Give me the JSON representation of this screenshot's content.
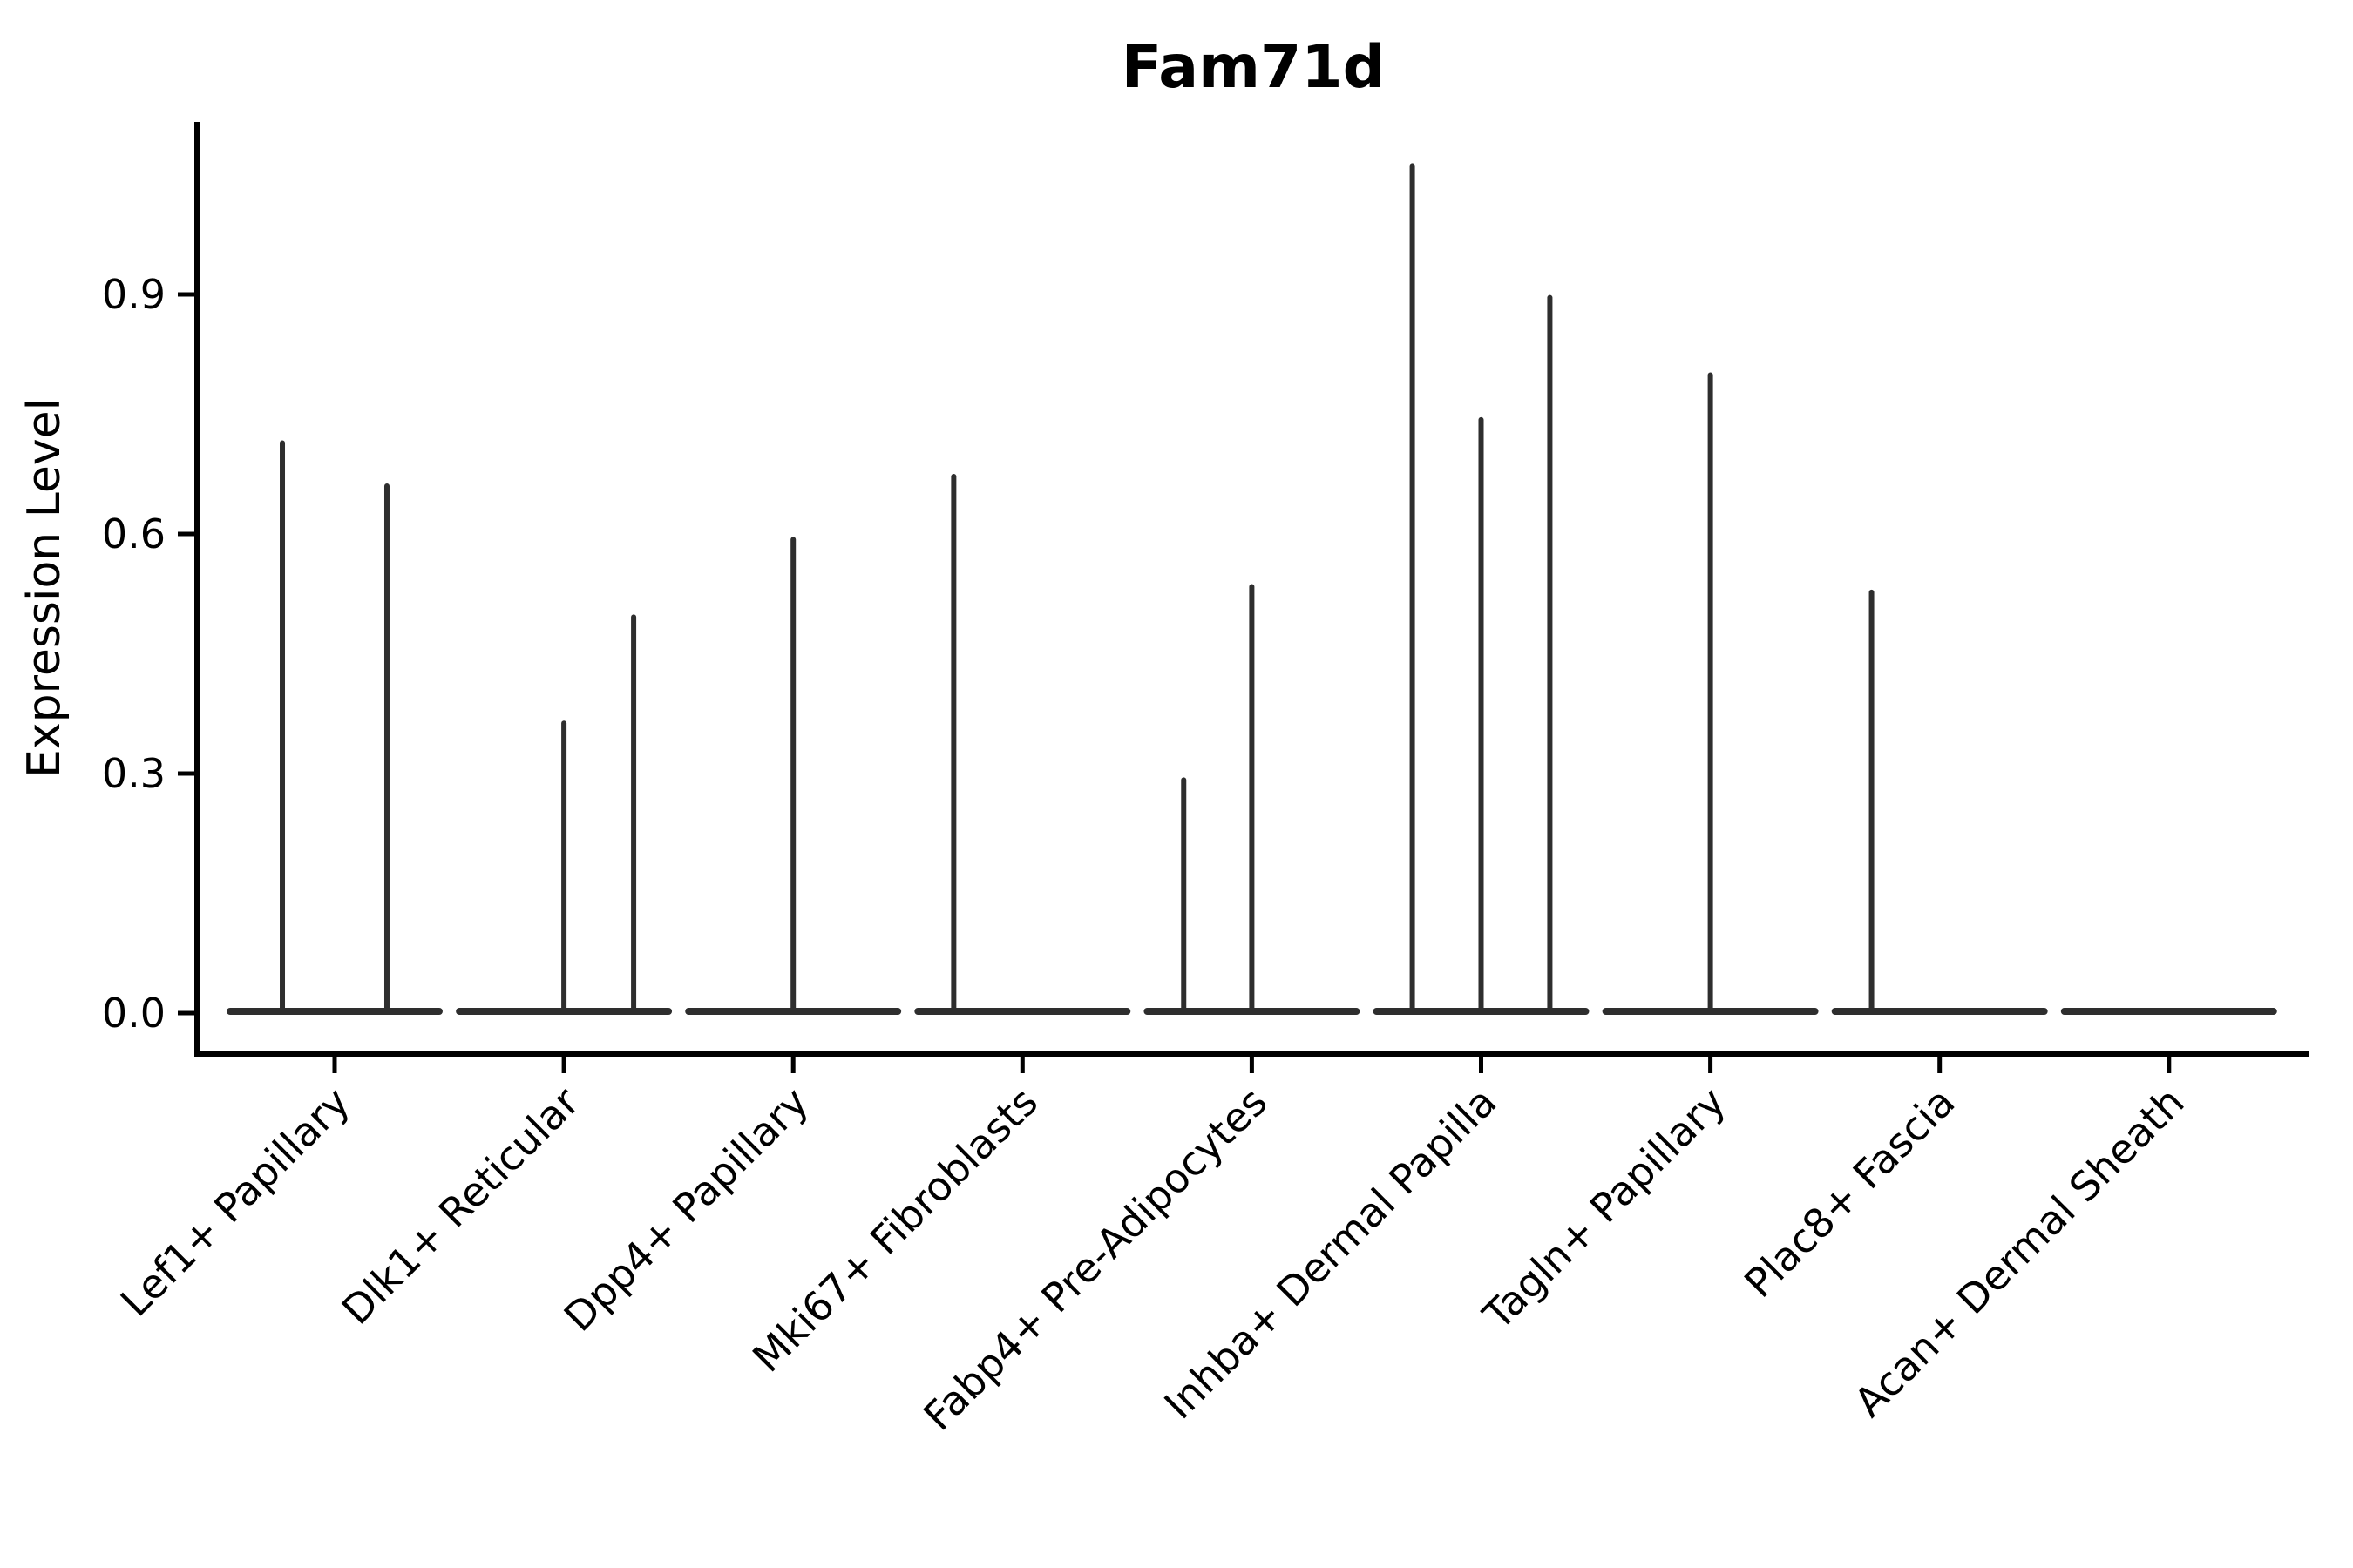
{
  "chart_data": {
    "type": "violin",
    "title": "Fam71d",
    "ylabel": "Expression Level",
    "xlabel": "",
    "yticks": [
      "0.0",
      "0.3",
      "0.6",
      "0.9"
    ],
    "ylim": [
      -0.051,
      1.116
    ],
    "grid": false,
    "legend": null,
    "axis_color": "#000000",
    "violin_color": "#2e2e2e",
    "background_color": "#ffffff",
    "baseline_value": 0.0,
    "base_halfwidth": 0.456,
    "categories": [
      {
        "label": "Lef1+ Papillary",
        "spikes": [
          {
            "offset": -0.228,
            "value": 0.714
          },
          {
            "offset": 0.228,
            "value": 0.66
          }
        ]
      },
      {
        "label": "Dlk1+ Reticular",
        "spikes": [
          {
            "offset": 0.0,
            "value": 0.363
          },
          {
            "offset": 0.304,
            "value": 0.496
          }
        ]
      },
      {
        "label": "Dpp4+ Papillary",
        "spikes": [
          {
            "offset": 0.0,
            "value": 0.593
          }
        ]
      },
      {
        "label": "Mki67+ Fibroblasts",
        "spikes": [
          {
            "offset": -0.3,
            "value": 0.672
          }
        ]
      },
      {
        "label": "Fabp4+ Pre-Adipocytes",
        "spikes": [
          {
            "offset": -0.297,
            "value": 0.292
          },
          {
            "offset": 0.0,
            "value": 0.534
          }
        ]
      },
      {
        "label": "Inhba+ Dermal Papilla",
        "spikes": [
          {
            "offset": -0.3,
            "value": 1.061
          },
          {
            "offset": 0.0,
            "value": 0.743
          },
          {
            "offset": 0.3,
            "value": 0.896
          }
        ]
      },
      {
        "label": "Tagln+ Papillary",
        "spikes": [
          {
            "offset": 0.0,
            "value": 0.799
          }
        ]
      },
      {
        "label": "Plac8+ Fascia",
        "spikes": [
          {
            "offset": -0.297,
            "value": 0.527
          }
        ]
      },
      {
        "label": "Acan+ Dermal Sheath",
        "spikes": []
      }
    ]
  }
}
